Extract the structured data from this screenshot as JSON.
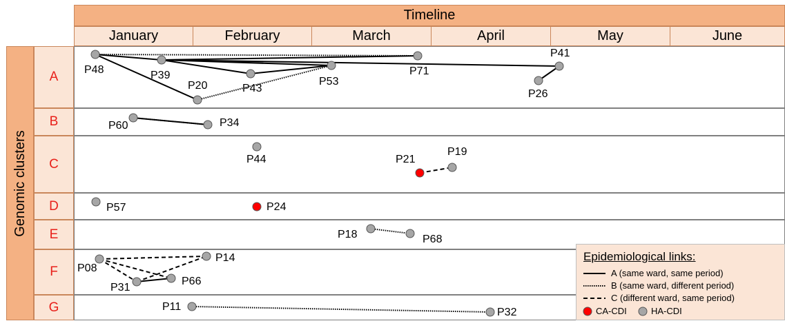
{
  "header": {
    "title": "Timeline",
    "months": [
      "January",
      "February",
      "March",
      "April",
      "May",
      "June"
    ]
  },
  "sidebar": {
    "title": "Genomic clusters",
    "clusters": [
      "A",
      "B",
      "C",
      "D",
      "E",
      "F",
      "G"
    ]
  },
  "patients": [
    {
      "id": "P48",
      "type": "HA-CDI"
    },
    {
      "id": "P39",
      "type": "HA-CDI"
    },
    {
      "id": "P20",
      "type": "HA-CDI"
    },
    {
      "id": "P43",
      "type": "HA-CDI"
    },
    {
      "id": "P53",
      "type": "HA-CDI"
    },
    {
      "id": "P71",
      "type": "HA-CDI"
    },
    {
      "id": "P41",
      "type": "HA-CDI"
    },
    {
      "id": "P26",
      "type": "HA-CDI"
    },
    {
      "id": "P60",
      "type": "HA-CDI"
    },
    {
      "id": "P34",
      "type": "HA-CDI"
    },
    {
      "id": "P44",
      "type": "HA-CDI"
    },
    {
      "id": "P21",
      "type": "CA-CDI"
    },
    {
      "id": "P19",
      "type": "HA-CDI"
    },
    {
      "id": "P57",
      "type": "HA-CDI"
    },
    {
      "id": "P24",
      "type": "CA-CDI"
    },
    {
      "id": "P18",
      "type": "HA-CDI"
    },
    {
      "id": "P68",
      "type": "HA-CDI"
    },
    {
      "id": "P08",
      "type": "HA-CDI"
    },
    {
      "id": "P31",
      "type": "HA-CDI"
    },
    {
      "id": "P66",
      "type": "HA-CDI"
    },
    {
      "id": "P14",
      "type": "HA-CDI"
    },
    {
      "id": "P11",
      "type": "HA-CDI"
    },
    {
      "id": "P32",
      "type": "HA-CDI"
    }
  ],
  "links": [
    {
      "from": "P48",
      "to": "P71",
      "type": "B"
    },
    {
      "from": "P48",
      "to": "P39",
      "type": "A"
    },
    {
      "from": "P48",
      "to": "P20",
      "type": "A"
    },
    {
      "from": "P39",
      "to": "P71",
      "type": "A"
    },
    {
      "from": "P39",
      "to": "P41",
      "type": "A"
    },
    {
      "from": "P39",
      "to": "P53",
      "type": "A"
    },
    {
      "from": "P39",
      "to": "P43",
      "type": "A"
    },
    {
      "from": "P43",
      "to": "P53",
      "type": "A"
    },
    {
      "from": "P20",
      "to": "P53",
      "type": "B"
    },
    {
      "from": "P41",
      "to": "P26",
      "type": "A"
    },
    {
      "from": "P60",
      "to": "P34",
      "type": "A"
    },
    {
      "from": "P60",
      "to": "P34",
      "type": "B"
    },
    {
      "from": "P21",
      "to": "P19",
      "type": "C"
    },
    {
      "from": "P18",
      "to": "P68",
      "type": "B"
    },
    {
      "from": "P08",
      "to": "P14",
      "type": "C"
    },
    {
      "from": "P08",
      "to": "P31",
      "type": "C"
    },
    {
      "from": "P08",
      "to": "P66",
      "type": "C"
    },
    {
      "from": "P31",
      "to": "P14",
      "type": "C"
    },
    {
      "from": "P31",
      "to": "P66",
      "type": "A"
    },
    {
      "from": "P11",
      "to": "P32",
      "type": "B"
    }
  ],
  "legend": {
    "title": "Epidemiological links:",
    "items": [
      "A (same ward, same period)",
      "B (same ward, different period)",
      "C (different ward, same period)"
    ],
    "ca_label": "CA-CDI",
    "ha_label": "HA-CDI"
  },
  "colors": {
    "header": "#f4b183",
    "header_light": "#fbe5d6",
    "cluster_text": "#e8201a",
    "ca_cdi": "#ff0000",
    "ha_cdi": "#a6a6a6"
  }
}
